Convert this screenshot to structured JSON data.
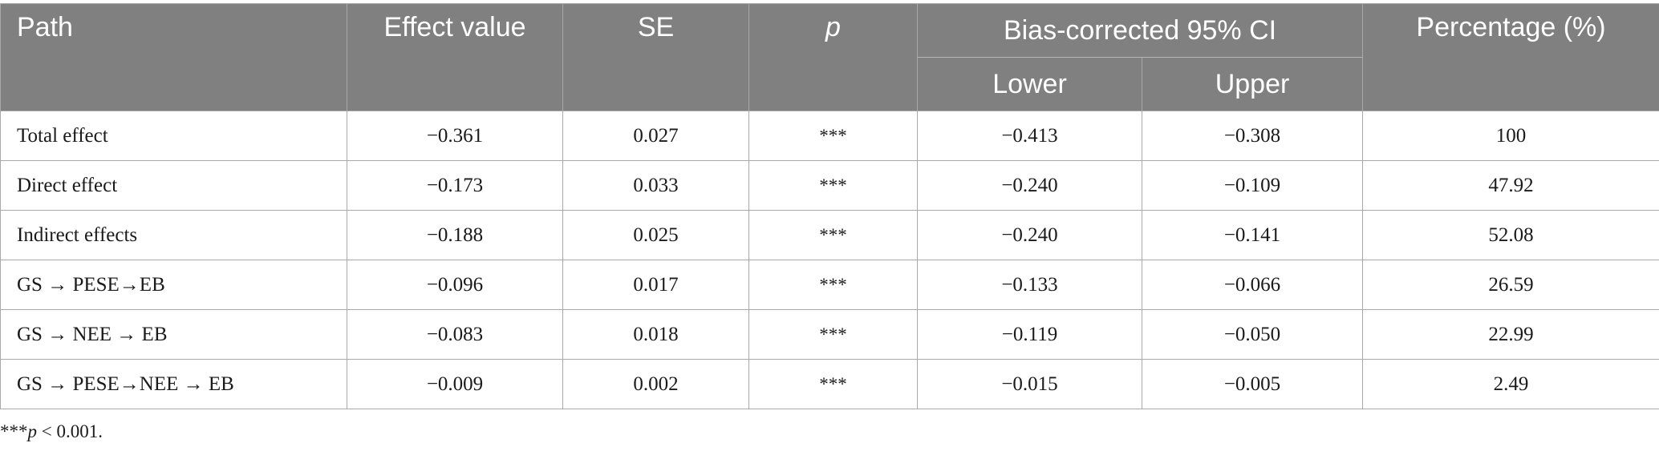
{
  "headers": {
    "path": "Path",
    "effect_value": "Effect value",
    "se": "SE",
    "p": "p",
    "ci_group": "Bias-corrected 95% CI",
    "lower": "Lower",
    "upper": "Upper",
    "percentage": "Percentage (%)"
  },
  "rows": [
    {
      "path": "Total effect",
      "effect": "−0.361",
      "se": "0.027",
      "p": "***",
      "lower": "−0.413",
      "upper": "−0.308",
      "pct": "100"
    },
    {
      "path": "Direct effect",
      "effect": "−0.173",
      "se": "0.033",
      "p": "***",
      "lower": "−0.240",
      "upper": "−0.109",
      "pct": "47.92"
    },
    {
      "path": "Indirect effects",
      "effect": "−0.188",
      "se": "0.025",
      "p": "***",
      "lower": "−0.240",
      "upper": "−0.141",
      "pct": "52.08"
    },
    {
      "path": "GS → PESE→EB",
      "effect": "−0.096",
      "se": "0.017",
      "p": "***",
      "lower": "−0.133",
      "upper": "−0.066",
      "pct": "26.59"
    },
    {
      "path": "GS → NEE → EB",
      "effect": "−0.083",
      "se": "0.018",
      "p": "***",
      "lower": "−0.119",
      "upper": "−0.050",
      "pct": "22.99"
    },
    {
      "path": "GS → PESE→NEE → EB",
      "effect": "−0.009",
      "se": "0.002",
      "p": "***",
      "lower": "−0.015",
      "upper": "−0.005",
      "pct": "2.49"
    }
  ],
  "footnote": {
    "stars": "***",
    "p": "p",
    "rest": " < 0.001."
  },
  "colors": {
    "header_bg": "#808080",
    "header_text": "#ffffff",
    "border": "#a9a9a9"
  }
}
